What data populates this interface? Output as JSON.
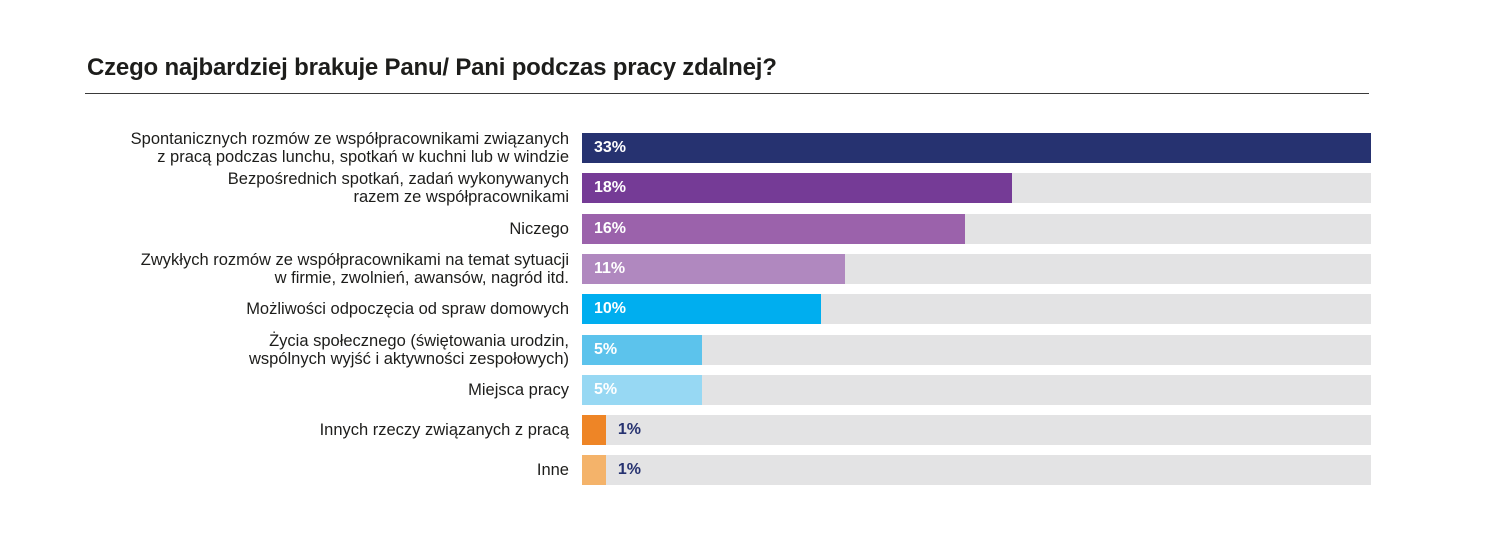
{
  "chart_data": {
    "type": "bar",
    "orientation": "horizontal",
    "title": "Czego najbardziej brakuje Panu/ Pani podczas pracy zdalnej?",
    "xlim": [
      0,
      33
    ],
    "unit": "%",
    "categories": [
      "Spontanicznych rozmów ze współpracownikami związanych\nz pracą podczas lunchu, spotkań w kuchni lub w windzie",
      "Bezpośrednich spotkań, zadań wykonywanych\nrazem ze współpracownikami",
      "Niczego",
      "Zwykłych rozmów ze współpracownikami na temat sytuacji\nw firmie, zwolnień, awansów, nagród itd.",
      "Możliwości odpoczęcia od spraw domowych",
      "Życia społecznego (świętowania urodzin,\nwspólnych wyjść i aktywności zespołowych)",
      "Miejsca pracy",
      "Innych rzeczy związanych z pracą",
      "Inne"
    ],
    "values": [
      33,
      18,
      16,
      11,
      10,
      5,
      5,
      1,
      1
    ],
    "value_labels": [
      "33%",
      "18%",
      "16%",
      "11%",
      "10%",
      "5%",
      "5%",
      "1%",
      "1%"
    ],
    "colors": [
      "#263270",
      "#753b96",
      "#9b62ab",
      "#b088bf",
      "#00aeef",
      "#5cc3ec",
      "#97d8f3",
      "#ee8526",
      "#f4b36a"
    ],
    "track_color": "#e3e3e4",
    "value_label_colors": [
      "#ffffff",
      "#ffffff",
      "#ffffff",
      "#ffffff",
      "#ffffff",
      "#ffffff",
      "#ffffff",
      "#263270",
      "#263270"
    ]
  }
}
